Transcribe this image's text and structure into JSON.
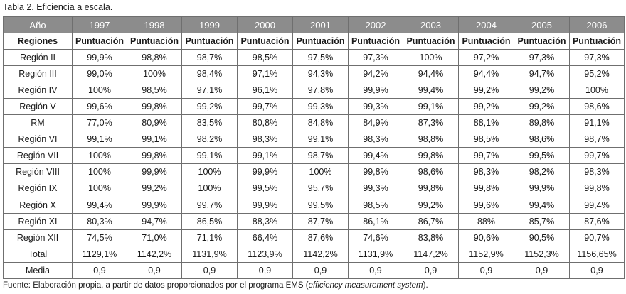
{
  "caption": "Tabla 2. Eficiencia a escala.",
  "header": [
    "Año",
    "1997",
    "1998",
    "1999",
    "2000",
    "2001",
    "2002",
    "2003",
    "2004",
    "2005",
    "2006"
  ],
  "subheader": [
    "Regiones",
    "Puntuación",
    "Puntuación",
    "Puntuación",
    "Puntuación",
    "Puntuación",
    "Puntuación",
    "Puntuación",
    "Puntuación",
    "Puntuación",
    "Puntuación"
  ],
  "rows": [
    [
      "Región II",
      "99,9%",
      "98,8%",
      "98,7%",
      "98,5%",
      "97,5%",
      "97,3%",
      "100%",
      "97,2%",
      "97,3%",
      "97,3%"
    ],
    [
      "Región III",
      "99,0%",
      "100%",
      "98,4%",
      "97,1%",
      "94,3%",
      "94,2%",
      "94,4%",
      "94,4%",
      "94,7%",
      "95,2%"
    ],
    [
      "Región IV",
      "100%",
      "98,5%",
      "97,1%",
      "96,1%",
      "97,8%",
      "99,9%",
      "99,4%",
      "99,2%",
      "99,2%",
      "100%"
    ],
    [
      "Región V",
      "99,6%",
      "99,8%",
      "99,2%",
      "99,7%",
      "99,3%",
      "99,3%",
      "99,1%",
      "99,2%",
      "99,2%",
      "98,6%"
    ],
    [
      "RM",
      "77,0%",
      "80,9%",
      "83,5%",
      "80,8%",
      "84,8%",
      "84,9%",
      "87,3%",
      "88,1%",
      "89,8%",
      "91,1%"
    ],
    [
      "Región VI",
      "99,1%",
      "99,1%",
      "98,2%",
      "98,3%",
      "99,1%",
      "98,3%",
      "98,8%",
      "98,5%",
      "98,6%",
      "98,7%"
    ],
    [
      "Región VII",
      "100%",
      "99,8%",
      "99,1%",
      "99,1%",
      "98,7%",
      "99,4%",
      "99,8%",
      "99,7%",
      "99,5%",
      "99,7%"
    ],
    [
      "Región VIII",
      "100%",
      "99,9%",
      "100%",
      "99,9%",
      "100%",
      "99,8%",
      "98,6%",
      "98,3%",
      "98,2%",
      "98,3%"
    ],
    [
      "Región IX",
      "100%",
      "99,2%",
      "100%",
      "99,5%",
      "95,7%",
      "99,3%",
      "99,8%",
      "99,8%",
      "99,9%",
      "99,8%"
    ],
    [
      "Región X",
      "99,4%",
      "99,9%",
      "99,7%",
      "99,9%",
      "99,5%",
      "98,5%",
      "99,2%",
      "99,6%",
      "99,4%",
      "99,4%"
    ],
    [
      "Región XI",
      "80,3%",
      "94,7%",
      "86,5%",
      "88,3%",
      "87,7%",
      "86,1%",
      "86,7%",
      "88%",
      "85,7%",
      "87,6%"
    ],
    [
      "Región XII",
      "74,5%",
      "71,0%",
      "71,1%",
      "66,4%",
      "87,6%",
      "74,6%",
      "83,8%",
      "90,6%",
      "90,5%",
      "90,7%"
    ],
    [
      "Total",
      "1129,1%",
      "1142,2%",
      "1131,9%",
      "1123,9%",
      "1142,2%",
      "1131,9%",
      "1147,2%",
      "1152,9%",
      "1152,3%",
      "1156,65%"
    ],
    [
      "Media",
      "0,9",
      "0,9",
      "0,9",
      "0,9",
      "0,9",
      "0,9",
      "0,9",
      "0,9",
      "0,9",
      "0,9"
    ]
  ],
  "source": {
    "prefix": "Fuente: Elaboración propia, a partir de datos proporcionados por el programa EMS (",
    "emphasis": "efficiency measurement system",
    "suffix": ")."
  }
}
